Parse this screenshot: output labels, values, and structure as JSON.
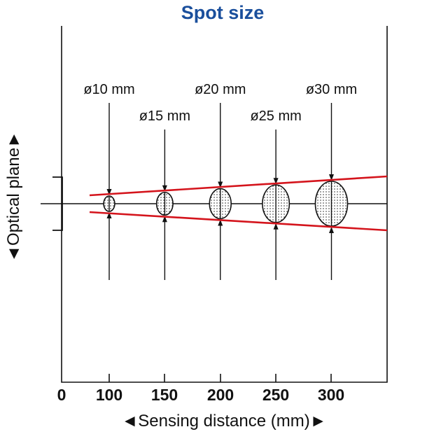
{
  "title": "Spot size",
  "xlabel": "◄Sensing distance (mm)►",
  "ylabel": "◄Optical plane►",
  "colors": {
    "title": "#1a4f9c",
    "beam": "#d4141c",
    "ink": "#111111"
  },
  "x_ticks": [
    "0",
    "100",
    "150",
    "200",
    "250",
    "300"
  ],
  "spots": [
    {
      "distance": 100,
      "label": "ø10 mm",
      "diameter_mm": 10
    },
    {
      "distance": 150,
      "label": "ø15 mm",
      "diameter_mm": 15
    },
    {
      "distance": 200,
      "label": "ø20 mm",
      "diameter_mm": 20
    },
    {
      "distance": 250,
      "label": "ø25 mm",
      "diameter_mm": 25
    },
    {
      "distance": 300,
      "label": "ø30 mm",
      "diameter_mm": 30
    }
  ]
}
